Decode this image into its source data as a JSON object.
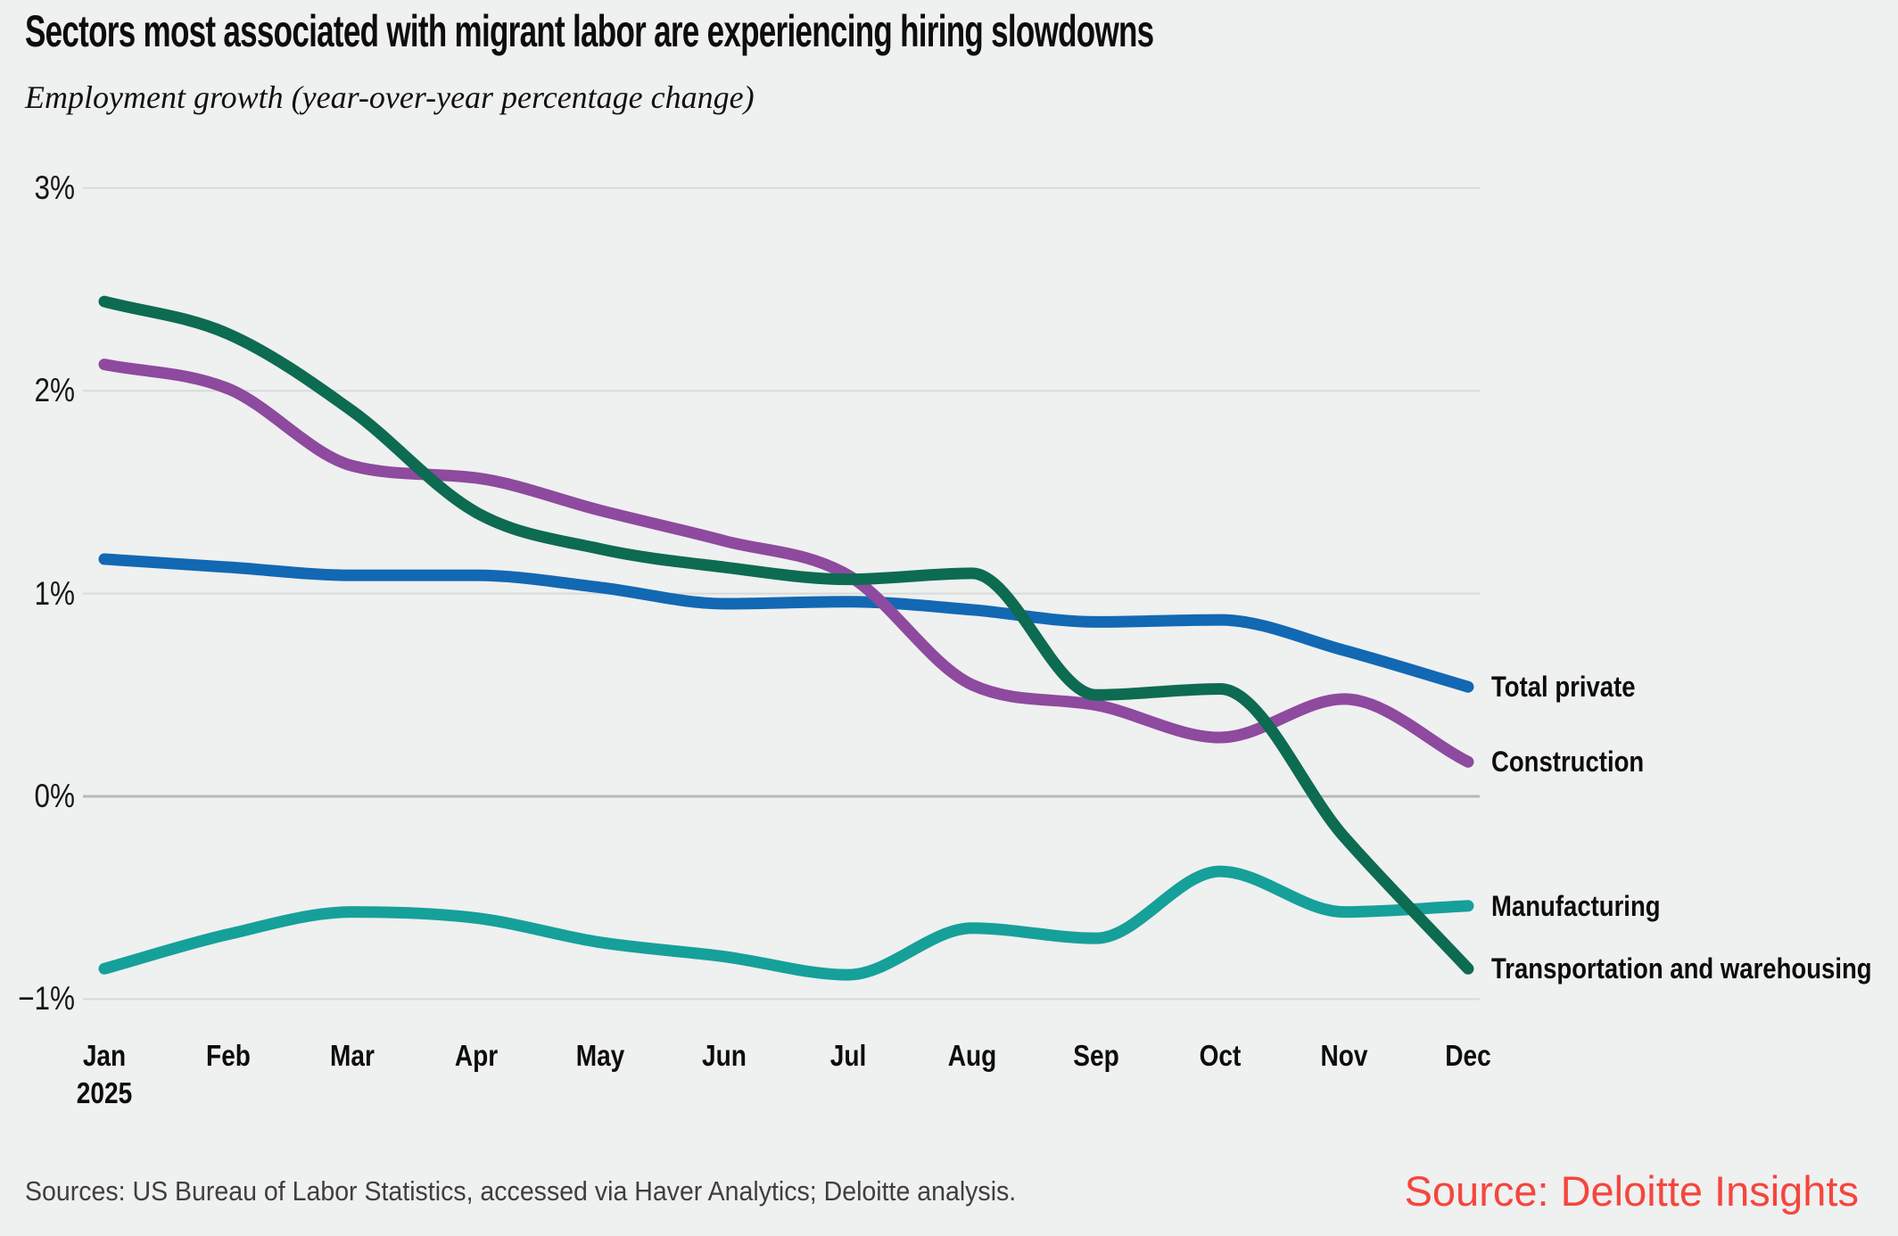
{
  "page": {
    "background": "#eff0f0",
    "title": "Sectors most associated with migrant labor are experiencing hiring slowdowns",
    "subtitle": "Employment growth (year-over-year percentage change)",
    "source_note": "Sources: US Bureau of Labor Statistics, accessed via Haver Analytics; Deloitte analysis.",
    "attribution": "Source: Deloitte Insights",
    "attribution_color": "#f5463d"
  },
  "colors": {
    "gridline": "#d8d9d9",
    "zero_gridline": "#b7b8b8",
    "text": "#0d0d0d",
    "muted_text": "#3f3f3f"
  },
  "chart_data": {
    "type": "line",
    "title": "Sectors most associated with migrant labor are experiencing hiring slowdowns",
    "subtitle": "Employment growth (year-over-year percentage change)",
    "x_categories": [
      "Jan",
      "Feb",
      "Mar",
      "Apr",
      "May",
      "Jun",
      "Jul",
      "Aug",
      "Sep",
      "Oct",
      "Nov",
      "Dec"
    ],
    "x_year_label": "2025",
    "y_ticks": [
      {
        "value": 3,
        "label": "3%"
      },
      {
        "value": 2,
        "label": "2%"
      },
      {
        "value": 1,
        "label": "1%"
      },
      {
        "value": 0,
        "label": "0%"
      },
      {
        "value": -1,
        "label": "−1%"
      }
    ],
    "ylim": [
      -1.3,
      3.25
    ],
    "grid": "horizontal",
    "legend_position": "right-of-line-ends",
    "series": [
      {
        "name": "Total private",
        "color": "#1268b3",
        "values": [
          1.17,
          1.13,
          1.09,
          1.09,
          1.03,
          0.95,
          0.96,
          0.92,
          0.86,
          0.87,
          0.72,
          0.54
        ]
      },
      {
        "name": "Construction",
        "color": "#8e4a9e",
        "values": [
          2.13,
          2.01,
          1.63,
          1.57,
          1.41,
          1.26,
          1.09,
          0.55,
          0.45,
          0.29,
          0.48,
          0.17
        ]
      },
      {
        "name": "Manufacturing",
        "color": "#16a09a",
        "values": [
          -0.85,
          -0.68,
          -0.57,
          -0.6,
          -0.72,
          -0.79,
          -0.88,
          -0.65,
          -0.7,
          -0.37,
          -0.57,
          -0.54
        ]
      },
      {
        "name": "Transportation and warehousing",
        "color": "#0c6b51",
        "values": [
          2.44,
          2.28,
          1.9,
          1.4,
          1.22,
          1.13,
          1.07,
          1.1,
          0.5,
          0.53,
          -0.2,
          -0.85
        ]
      }
    ]
  }
}
